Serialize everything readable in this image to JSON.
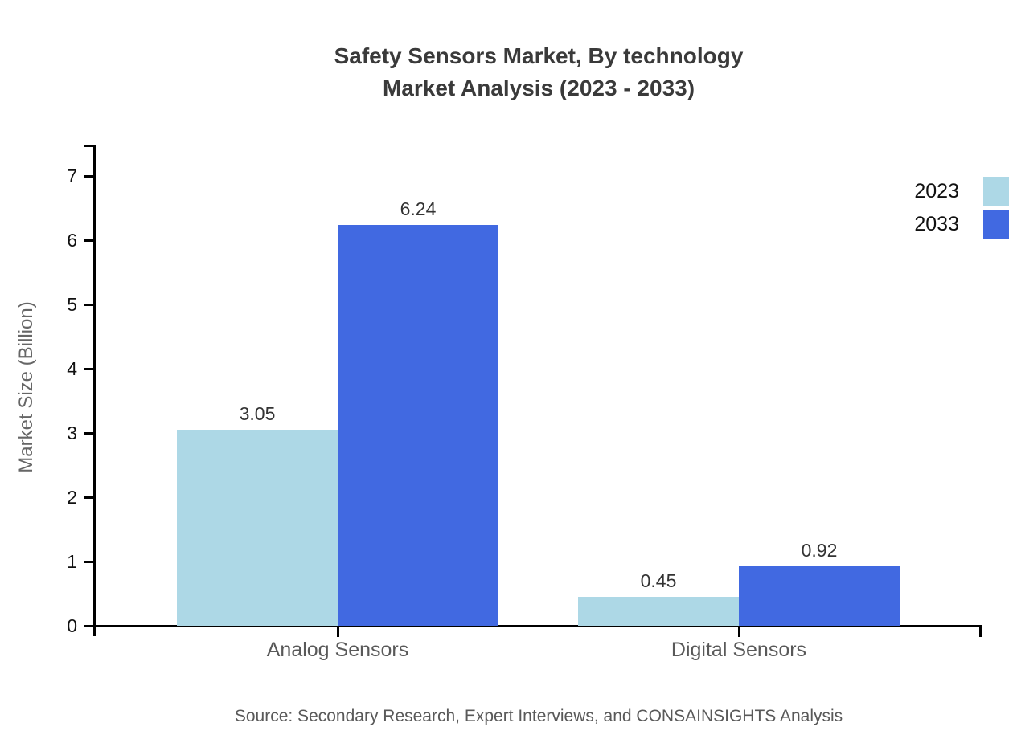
{
  "title": {
    "line1": "Safety Sensors Market, By technology",
    "line2": "Market Analysis (2023 - 2033)"
  },
  "source": "Source: Secondary Research, Expert Interviews, and CONSAINSIGHTS Analysis",
  "chart_data": {
    "type": "bar",
    "title": "Safety Sensors Market, By technology Market Analysis (2023 - 2033)",
    "categories": [
      "Analog Sensors",
      "Digital Sensors"
    ],
    "series": [
      {
        "name": "2023",
        "color": "#ADD8E6",
        "values": [
          3.05,
          0.45
        ]
      },
      {
        "name": "2033",
        "color": "#4169E1",
        "values": [
          6.24,
          0.92
        ]
      }
    ],
    "xlabel": "",
    "ylabel": "Market Size (Billion)",
    "ylim": [
      0,
      7.49
    ],
    "yticks": [
      0,
      1,
      2,
      3,
      4,
      5,
      6,
      7
    ],
    "value_labels": true,
    "value_label_format": "2dp",
    "grid": false,
    "legend_position": "top-right",
    "axis_color": "#000000",
    "text_colors": {
      "title": "#3a3a3a",
      "tick_labels": "#111111",
      "value_labels": "#333333",
      "category_labels": "#595959",
      "ylabel": "#666666",
      "source": "#595959"
    }
  }
}
